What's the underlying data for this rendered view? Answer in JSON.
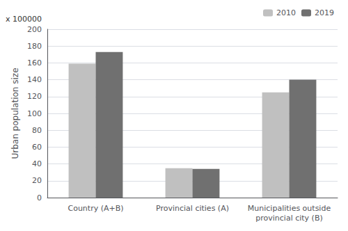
{
  "chart_data": {
    "type": "bar",
    "categories": [
      "Country (A+B)",
      "Provincial cities (A)",
      "Municipalities outside\nprovincial city (B)"
    ],
    "series": [
      {
        "name": "2010",
        "color": "#c0c0c0",
        "values": [
          159,
          35,
          125
        ]
      },
      {
        "name": "2019",
        "color": "#707070",
        "values": [
          173,
          34,
          140
        ]
      }
    ],
    "ylabel": "Urban population size",
    "annotations": [
      "x 100000"
    ],
    "ylim": [
      0,
      200
    ],
    "yticks": [
      0,
      20,
      40,
      60,
      80,
      100,
      120,
      140,
      160,
      180,
      200
    ],
    "grid": true,
    "legend": "upper right"
  }
}
